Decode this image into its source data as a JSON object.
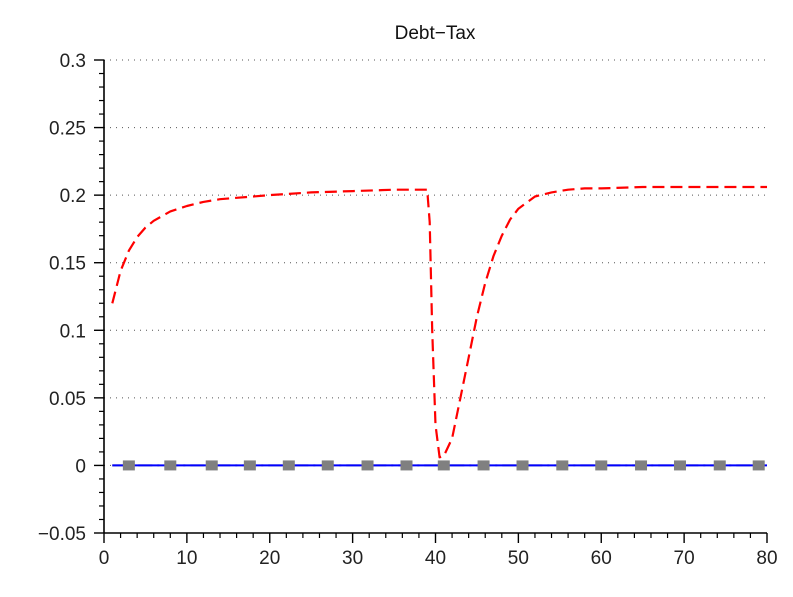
{
  "chart_data": {
    "type": "line",
    "title": "Debt−Tax",
    "xlabel": "",
    "ylabel": "",
    "xlim": [
      0,
      80
    ],
    "ylim": [
      -0.05,
      0.3
    ],
    "x_ticks": [
      0,
      10,
      20,
      30,
      40,
      50,
      60,
      70,
      80
    ],
    "x_tick_labels": [
      "0",
      "10",
      "20",
      "30",
      "40",
      "50",
      "60",
      "70",
      "80"
    ],
    "y_ticks": [
      -0.05,
      0,
      0.05,
      0.1,
      0.15,
      0.2,
      0.25,
      0.3
    ],
    "y_tick_labels": [
      "−0.05",
      "0",
      "0.05",
      "0.1",
      "0.15",
      "0.2",
      "0.25",
      "0.3"
    ],
    "grid": "horizontal dotted",
    "series": [
      {
        "style": "dashed",
        "color": "#ff0000",
        "x": [
          1,
          2,
          3,
          4,
          5,
          6,
          8,
          10,
          12,
          14,
          16,
          18,
          20,
          25,
          30,
          35,
          39,
          39.3,
          39.6,
          40,
          40.5,
          41,
          42,
          43,
          44,
          45,
          46,
          47,
          48,
          49,
          50,
          52,
          54,
          56,
          58,
          60,
          65,
          70,
          75,
          80
        ],
        "values": [
          0.12,
          0.144,
          0.159,
          0.169,
          0.176,
          0.181,
          0.188,
          0.192,
          0.195,
          0.197,
          0.198,
          0.199,
          0.2,
          0.202,
          0.203,
          0.204,
          0.204,
          0.18,
          0.1,
          0.03,
          0.006,
          0.007,
          0.02,
          0.05,
          0.08,
          0.11,
          0.135,
          0.155,
          0.17,
          0.182,
          0.19,
          0.199,
          0.202,
          0.204,
          0.205,
          0.205,
          0.206,
          0.206,
          0.206,
          0.206
        ]
      },
      {
        "style": "solid",
        "color": "#0000ff",
        "x": [
          1,
          80
        ],
        "values": [
          0,
          0
        ]
      },
      {
        "style": "dash-dot markers",
        "color": "#808080",
        "marker": "square",
        "x": [
          1,
          3,
          8,
          13,
          17.6,
          22.3,
          27,
          31.8,
          36.5,
          41,
          45.8,
          50.5,
          55.3,
          60,
          64.8,
          69.5,
          74.3,
          79
        ],
        "values": [
          0,
          0,
          0,
          0,
          0,
          0,
          0,
          0,
          0,
          0,
          0,
          0,
          0,
          0,
          0,
          0,
          0,
          0
        ]
      }
    ]
  },
  "colors": {
    "axis": "#000000",
    "grid": "#555555",
    "background": "#ffffff"
  }
}
